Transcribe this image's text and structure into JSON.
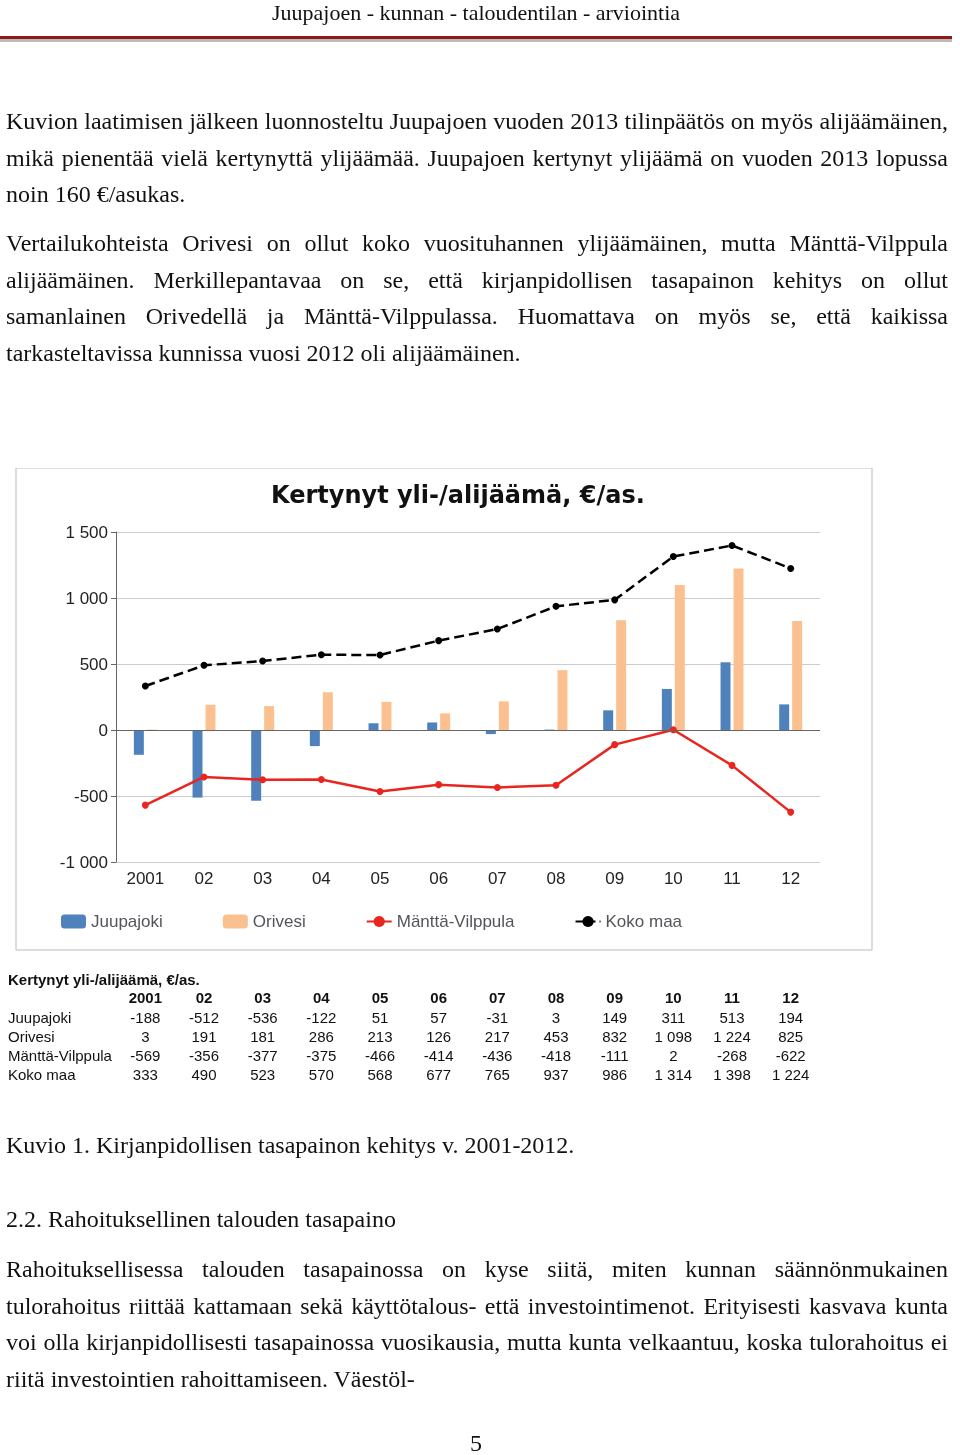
{
  "chart_data": {
    "type": "bar",
    "title": "Kertynyt yli-/alijäämä, €/as.",
    "categories": [
      "2001",
      "02",
      "03",
      "04",
      "05",
      "06",
      "07",
      "08",
      "09",
      "10",
      "11",
      "12"
    ],
    "series": [
      {
        "name": "Juupajoki",
        "color": "#4f81bd",
        "values": [
          -188,
          -512,
          -536,
          -122,
          51,
          57,
          -31,
          3,
          149,
          311,
          513,
          194
        ]
      },
      {
        "name": "Orivesi",
        "color": "#fac08f",
        "values": [
          3,
          191,
          181,
          286,
          213,
          126,
          217,
          453,
          832,
          1098,
          1224,
          825
        ]
      },
      {
        "name": "Mänttä-Vilppula",
        "type": "line",
        "color": "#e8251f",
        "line_style": "solid",
        "values": [
          -569,
          -356,
          -377,
          -375,
          -466,
          -414,
          -436,
          -418,
          -111,
          2,
          -268,
          -622
        ]
      },
      {
        "name": "Koko maa",
        "type": "line",
        "color": "#000000",
        "line_style": "dashed",
        "values": [
          333,
          490,
          523,
          570,
          568,
          677,
          765,
          937,
          986,
          1314,
          1398,
          1224
        ]
      }
    ],
    "ylim": [
      -1000,
      1500
    ],
    "yticks": [
      {
        "value": -1000,
        "label": "-1 000"
      },
      -500,
      0,
      500,
      {
        "value": 1000,
        "label": "1 000"
      },
      {
        "value": 1500,
        "label": "1 500"
      }
    ],
    "grid": "y",
    "legend": "bottom",
    "marker": "circle",
    "data_labels": true,
    "annotations": [
      "Juupajoen - kunnan - taloudentilan - arviointia",
      "Kuvion laatimisen jälkeen luonnosteltu Juupajoen vuoden 2013 tilinpäätös on myös alijäämäinen, mikä pienentää vielä kertynyttä ylijäämää. Juupajoen kertynyt ylijäämä on vuoden 2013 lopussa noin 160 €/asukas.",
      "Vertailukohteista Orivesi on ollut koko vuosituhannen ylijäämäinen, mutta Mänttä-Vilppula alijäämäinen. Merkillepantavaa on se, että kirjanpidollisen tasapainon kehitys on ollut samanlainen Orivedellä ja Mänttä-Vilppulassa. Huomattava on myös se, että kaikissa tarkasteltavissa kunnissa vuosi 2012 oli alijäämäinen.",
      "Kertynyt yli-/alijäämä, €/as.",
      "Kuvio 1. Kirjanpidollisen tasapainon kehitys v. 2001-2012.",
      "2.2. Rahoituksellinen talouden tasapaino",
      "Rahoituksellisessa talouden tasapainossa on kyse siitä, miten kunnan säännönmukainen tulorahoitus riittää kattamaan sekä käyttötalous- että investointimenot. Erityisesti kasvava kunta voi olla kirjanpidollisesti tasapainossa vuosikausia, mutta kunta velkaantuu, koska tulorahoitus ei riitä investointien rahoittamiseen. Väestöl-",
      "5"
    ]
  }
}
